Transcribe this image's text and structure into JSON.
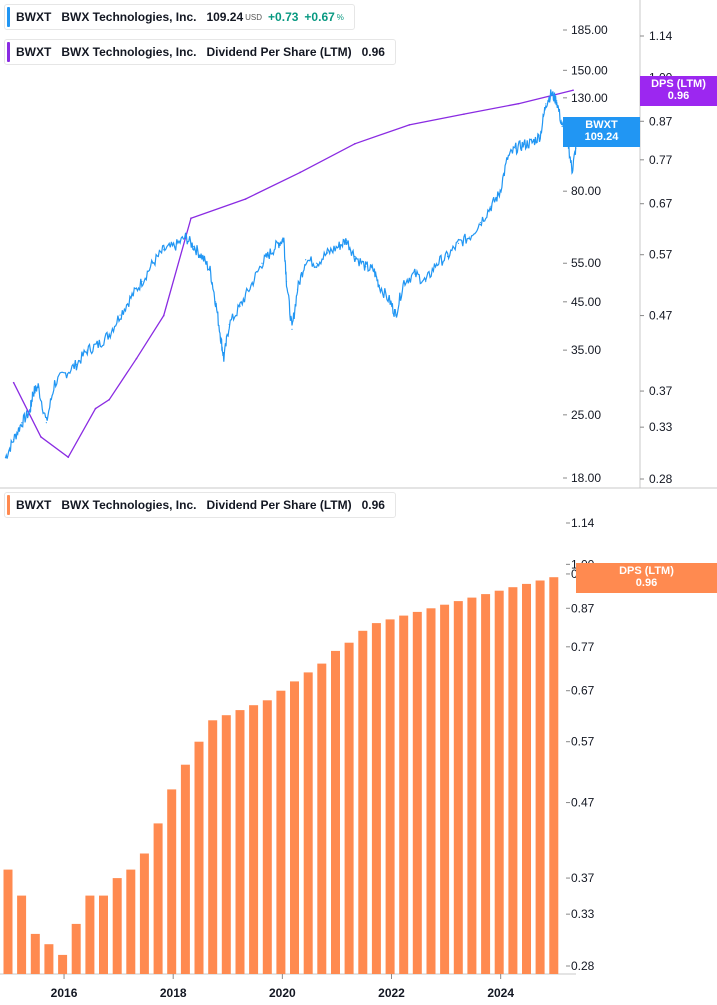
{
  "top_legend_price": {
    "ticker": "BWXT",
    "company": "BWX Technologies, Inc.",
    "price": "109.24",
    "currency": "USD",
    "change": "+0.73",
    "change_pct": "+0.67",
    "pct_sign": "%",
    "color": "#2196f3"
  },
  "top_legend_dps": {
    "ticker": "BWXT",
    "company": "BWX Technologies, Inc.",
    "metric": "Dividend Per Share (LTM)",
    "value": "0.96",
    "color": "#8a2be2"
  },
  "bottom_legend_dps": {
    "ticker": "BWXT",
    "company": "BWX Technologies, Inc.",
    "metric": "Dividend Per Share (LTM)",
    "value": "0.96",
    "color": "#ff8a50"
  },
  "tags": {
    "price_tag": {
      "line1": "BWXT",
      "line2": "109.24",
      "color": "#2196f3"
    },
    "dps_tag_top": {
      "line1": "DPS (LTM)",
      "line2": "0.96",
      "color": "#9c27f0"
    },
    "dps_tag_bottom": {
      "line1": "DPS (LTM)",
      "line2": "0.96",
      "color": "#ff8a50"
    }
  },
  "chart_data": [
    {
      "type": "line",
      "scale": "log",
      "series": [
        {
          "name": "BWXT",
          "color": "#2196f3",
          "points": [
            [
              2015.0,
              20
            ],
            [
              2015.15,
              22
            ],
            [
              2015.3,
              24
            ],
            [
              2015.45,
              25.5
            ],
            [
              2015.5,
              28
            ],
            [
              2015.6,
              29
            ],
            [
              2015.75,
              24
            ],
            [
              2015.9,
              29.5
            ],
            [
              2016.1,
              31
            ],
            [
              2016.3,
              32.5
            ],
            [
              2016.5,
              35
            ],
            [
              2016.7,
              36
            ],
            [
              2016.9,
              38
            ],
            [
              2017.1,
              42
            ],
            [
              2017.3,
              46
            ],
            [
              2017.5,
              50
            ],
            [
              2017.7,
              55
            ],
            [
              2017.9,
              59
            ],
            [
              2018.1,
              60
            ],
            [
              2018.3,
              63
            ],
            [
              2018.45,
              60
            ],
            [
              2018.6,
              57
            ],
            [
              2018.75,
              53
            ],
            [
              2018.85,
              45
            ],
            [
              2018.95,
              37
            ],
            [
              2019.0,
              33.5
            ],
            [
              2019.1,
              40
            ],
            [
              2019.3,
              44
            ],
            [
              2019.5,
              49
            ],
            [
              2019.7,
              55
            ],
            [
              2019.85,
              58
            ],
            [
              2020.0,
              61
            ],
            [
              2020.1,
              62.5
            ],
            [
              2020.15,
              50
            ],
            [
              2020.25,
              39
            ],
            [
              2020.35,
              48
            ],
            [
              2020.5,
              56
            ],
            [
              2020.7,
              55
            ],
            [
              2020.9,
              58
            ],
            [
              2021.1,
              60
            ],
            [
              2021.25,
              62
            ],
            [
              2021.4,
              57
            ],
            [
              2021.6,
              54
            ],
            [
              2021.75,
              53
            ],
            [
              2021.85,
              49
            ],
            [
              2022.05,
              45
            ],
            [
              2022.15,
              42
            ],
            [
              2022.3,
              50
            ],
            [
              2022.5,
              52
            ],
            [
              2022.7,
              50
            ],
            [
              2022.9,
              55
            ],
            [
              2023.1,
              57
            ],
            [
              2023.3,
              61
            ],
            [
              2023.5,
              63
            ],
            [
              2023.7,
              68
            ],
            [
              2023.9,
              74
            ],
            [
              2024.05,
              79
            ],
            [
              2024.2,
              95
            ],
            [
              2024.35,
              100
            ],
            [
              2024.5,
              102
            ],
            [
              2024.65,
              103
            ],
            [
              2024.8,
              107
            ],
            [
              2024.9,
              126
            ],
            [
              2025.0,
              133
            ],
            [
              2025.1,
              128
            ],
            [
              2025.2,
              112
            ],
            [
              2025.3,
              105
            ],
            [
              2025.38,
              89
            ],
            [
              2025.45,
              100
            ],
            [
              2025.5,
              109.24
            ]
          ]
        },
        {
          "name": "Dividend Per Share (LTM)",
          "color": "#8a2be2",
          "points": [
            [
              2015.15,
              0.38
            ],
            [
              2015.65,
              0.32
            ],
            [
              2016.15,
              0.3
            ],
            [
              2016.65,
              0.35
            ],
            [
              2016.9,
              0.36
            ],
            [
              2017.4,
              0.41
            ],
            [
              2017.9,
              0.47
            ],
            [
              2018.4,
              0.64
            ],
            [
              2019.4,
              0.68
            ],
            [
              2020.4,
              0.74
            ],
            [
              2021.4,
              0.81
            ],
            [
              2022.4,
              0.86
            ],
            [
              2023.4,
              0.89
            ],
            [
              2024.4,
              0.92
            ],
            [
              2025.4,
              0.96
            ]
          ]
        }
      ],
      "left_axis_ticks": [
        185.0,
        150.0,
        130.0,
        80.0,
        55.0,
        45.0,
        35.0,
        25.0,
        18.0
      ],
      "right_axis_ticks": [
        1.14,
        1.0,
        0.87,
        0.77,
        0.67,
        0.57,
        0.47,
        0.37,
        0.33,
        0.28
      ]
    },
    {
      "type": "bar",
      "scale": "log",
      "series": [
        {
          "name": "Dividend Per Share (LTM)",
          "color": "#ff8a50",
          "values": [
            0.38,
            0.35,
            0.31,
            0.3,
            0.29,
            0.32,
            0.35,
            0.35,
            0.37,
            0.38,
            0.4,
            0.44,
            0.49,
            0.53,
            0.57,
            0.61,
            0.62,
            0.63,
            0.64,
            0.65,
            0.67,
            0.69,
            0.71,
            0.73,
            0.76,
            0.78,
            0.81,
            0.83,
            0.84,
            0.85,
            0.86,
            0.87,
            0.88,
            0.89,
            0.9,
            0.91,
            0.92,
            0.93,
            0.94,
            0.95,
            0.96
          ]
        }
      ],
      "x_start": 2014.9,
      "x_step": 0.25,
      "x_ticks": [
        "2016",
        "2018",
        "2020",
        "2022",
        "2024"
      ],
      "x_tick_years": [
        2016,
        2018,
        2020,
        2022,
        2024
      ],
      "y_ticks": [
        1.14,
        1.0,
        0.97,
        0.87,
        0.77,
        0.67,
        0.57,
        0.47,
        0.37,
        0.33,
        0.28
      ]
    }
  ]
}
